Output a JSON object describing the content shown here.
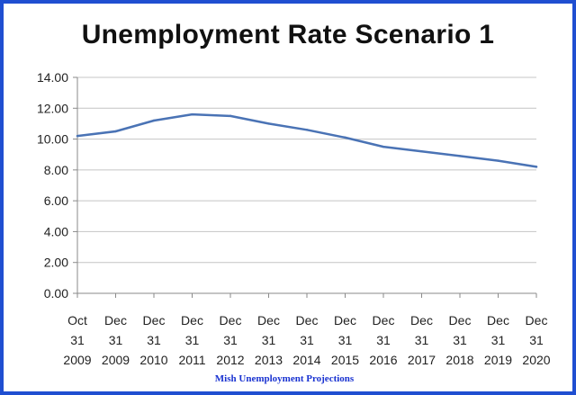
{
  "chart_data": {
    "type": "line",
    "title": "Unemployment Rate Scenario 1",
    "xlabel": "",
    "ylabel": "",
    "ylim": [
      0,
      14
    ],
    "yticks": [
      "0.00",
      "2.00",
      "4.00",
      "6.00",
      "8.00",
      "10.00",
      "12.00",
      "14.00"
    ],
    "categories": [
      {
        "month": "Oct",
        "day": "31",
        "year": "2009"
      },
      {
        "month": "Dec",
        "day": "31",
        "year": "2009"
      },
      {
        "month": "Dec",
        "day": "31",
        "year": "2010"
      },
      {
        "month": "Dec",
        "day": "31",
        "year": "2011"
      },
      {
        "month": "Dec",
        "day": "31",
        "year": "2012"
      },
      {
        "month": "Dec",
        "day": "31",
        "year": "2013"
      },
      {
        "month": "Dec",
        "day": "31",
        "year": "2014"
      },
      {
        "month": "Dec",
        "day": "31",
        "year": "2015"
      },
      {
        "month": "Dec",
        "day": "31",
        "year": "2016"
      },
      {
        "month": "Dec",
        "day": "31",
        "year": "2017"
      },
      {
        "month": "Dec",
        "day": "31",
        "year": "2018"
      },
      {
        "month": "Dec",
        "day": "31",
        "year": "2019"
      },
      {
        "month": "Dec",
        "day": "31",
        "year": "2020"
      }
    ],
    "series": [
      {
        "values": [
          10.2,
          10.5,
          11.2,
          11.6,
          11.5,
          11.0,
          10.6,
          10.1,
          9.5,
          9.2,
          8.9,
          8.6,
          8.2
        ],
        "color": "#4a73b5"
      }
    ],
    "grid": true,
    "legend": "none"
  },
  "footer": {
    "credit": "Mish Unemployment Projections"
  },
  "colors": {
    "border": "#1f4fd1",
    "grid": "#c4c4c4",
    "axis": "#8a8a8a"
  }
}
